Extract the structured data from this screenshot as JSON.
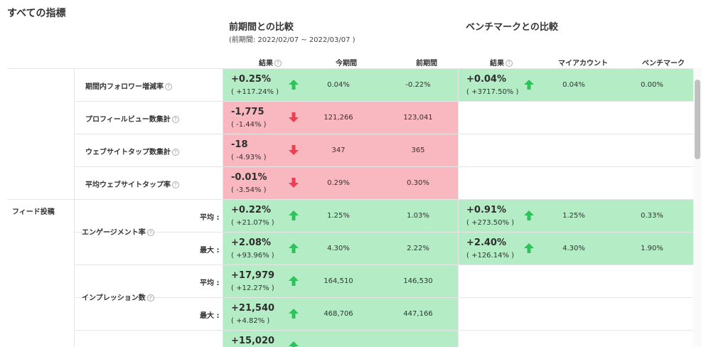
{
  "page": {
    "title": "すべての指標"
  },
  "period_section": {
    "title": "前期間との比較",
    "subtitle": "(前期間: 2022/02/07 ~ 2022/03/07 )"
  },
  "bench_section": {
    "title": "ベンチマークとの比較"
  },
  "columns": {
    "result": "結果",
    "current": "今期間",
    "previous": "前期間",
    "bench_result": "結果",
    "my_account": "マイアカウント",
    "benchmark": "ベンチマーク"
  },
  "group_labels": {
    "feed": "フィード投稿"
  },
  "sub_labels": {
    "avg": "平均 :",
    "max": "最大 :"
  },
  "rows": [
    {
      "label": "期間内フォロワー増減率",
      "main": "+0.25%",
      "sub": "( +117.24% )",
      "current": "0.04%",
      "previous": "-0.22%",
      "status": "up",
      "bench": {
        "main": "+0.04%",
        "sub": "( +3717.50% )",
        "mine": "0.04%",
        "bench": "0.00%"
      }
    },
    {
      "label": "プロフィールビュー数集計",
      "main": "-1,775",
      "sub": "( -1.44% )",
      "current": "121,266",
      "previous": "123,041",
      "status": "down"
    },
    {
      "label": "ウェブサイトタップ数集計",
      "main": "-18",
      "sub": "( -4.93% )",
      "current": "347",
      "previous": "365",
      "status": "down"
    },
    {
      "label": "平均ウェブサイトタップ率",
      "main": "-0.01%",
      "sub": "( -3.54% )",
      "current": "0.29%",
      "previous": "0.30%",
      "status": "down"
    },
    {
      "label": "エンゲージメント率",
      "main": "+0.22%",
      "sub": "( +21.07% )",
      "current": "1.25%",
      "previous": "1.03%",
      "status": "up",
      "bench": {
        "main": "+0.91%",
        "sub": "( +273.50% )",
        "mine": "1.25%",
        "bench": "0.33%"
      }
    },
    {
      "label": "",
      "main": "+2.08%",
      "sub": "( +93.96% )",
      "current": "4.30%",
      "previous": "2.22%",
      "status": "up",
      "bench": {
        "main": "+2.40%",
        "sub": "( +126.14% )",
        "mine": "4.30%",
        "bench": "1.90%"
      }
    },
    {
      "label": "インプレッション数",
      "main": "+17,979",
      "sub": "( +12.27% )",
      "current": "164,510",
      "previous": "146,530",
      "status": "up"
    },
    {
      "label": "",
      "main": "+21,540",
      "sub": "( +4.82% )",
      "current": "468,706",
      "previous": "447,166",
      "status": "up"
    },
    {
      "label": "",
      "main": "+15,020",
      "sub": "",
      "current": "",
      "previous": "",
      "status": "up"
    }
  ],
  "colors": {
    "up_bg": "#b4ecc6",
    "down_bg": "#f9b7bf",
    "up_arrow": "#2fc25b",
    "down_arrow": "#ef3d52"
  },
  "icons": {
    "up": "arrow-up-icon",
    "down": "arrow-down-icon",
    "help": "question-circle-icon"
  }
}
